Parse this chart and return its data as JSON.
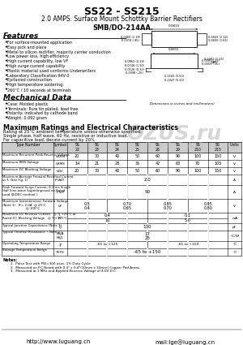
{
  "title": "SS22 - SS215",
  "subtitle": "2.0 AMPS. Surface Mount Schottky Barrier Rectifiers",
  "package": "SMB/DO-214AA",
  "bg_color": "#ffffff",
  "features": [
    "For surface-mounted application",
    "Easy pick and place",
    "Metal to silicon rectifier, majority carrier conduction",
    "Low power loss, high efficiency",
    "High current capability, low VF",
    "High surge current capability",
    "Plastic material used conforms Underwriters",
    "Laboratory Classification 94V-0",
    "Epifaxied construction",
    "High temperature soldering:",
    "260°C / 10 seconds at terminals"
  ],
  "mech_data": [
    "Case: Molded plastic",
    "Terminals: Pure tin plated, lead free.",
    "Polarity: indicated by cathode band",
    "Weight: 0.092 gram"
  ],
  "ratings_header": "Maximum Ratings and Electrical Characteristics",
  "ratings_note1": "Rating at 25°C ambient temperature unless otherwise specified.",
  "ratings_note2": "Single phase, half wave, 60 Hz, resistive or inductive load.",
  "ratings_note3": "For capacitive load, derate current by 20%",
  "notes": [
    "1.  Pulse Test with PW=300 usec, 1% Duty Cycle",
    "2.  Measured on P.C.Board with 0.4\" x 0.4\"(10mm x 10mm) Copper Pad Areas.",
    "3.  Measured at 1 MHz and Applied Reverse Voltage of 4.0V D.C."
  ],
  "footer_left": "http://www.luguang.cn",
  "footer_right": "mail:lge@luguang.cn",
  "watermark": "OZUS.ru",
  "watermark2": "П  О  Р  Т  А  Л"
}
